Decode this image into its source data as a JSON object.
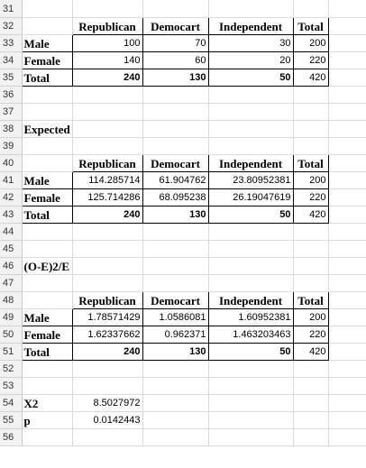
{
  "rows": [
    {
      "num": "31",
      "cells": []
    },
    {
      "num": "32",
      "cells": [
        {
          "col": 1,
          "text": "Republican",
          "kind": "header"
        },
        {
          "col": 2,
          "text": "Democart",
          "kind": "header"
        },
        {
          "col": 3,
          "text": "Independent",
          "kind": "header"
        },
        {
          "col": 4,
          "text": "Total",
          "kind": "header"
        }
      ]
    },
    {
      "num": "33",
      "cells": [
        {
          "col": 0,
          "text": "Male",
          "kind": "label"
        },
        {
          "col": 1,
          "text": "100",
          "kind": "num"
        },
        {
          "col": 2,
          "text": "70",
          "kind": "num"
        },
        {
          "col": 3,
          "text": "30",
          "kind": "num"
        },
        {
          "col": 4,
          "text": "200",
          "kind": "num"
        }
      ]
    },
    {
      "num": "34",
      "cells": [
        {
          "col": 0,
          "text": "Female",
          "kind": "label"
        },
        {
          "col": 1,
          "text": "140",
          "kind": "num"
        },
        {
          "col": 2,
          "text": "60",
          "kind": "num"
        },
        {
          "col": 3,
          "text": "20",
          "kind": "num"
        },
        {
          "col": 4,
          "text": "220",
          "kind": "num"
        }
      ]
    },
    {
      "num": "35",
      "cells": [
        {
          "col": 0,
          "text": "Total",
          "kind": "label"
        },
        {
          "col": 1,
          "text": "240",
          "kind": "numbold"
        },
        {
          "col": 2,
          "text": "130",
          "kind": "numbold"
        },
        {
          "col": 3,
          "text": "50",
          "kind": "numbold"
        },
        {
          "col": 4,
          "text": "420",
          "kind": "num"
        }
      ]
    },
    {
      "num": "36",
      "cells": []
    },
    {
      "num": "37",
      "cells": []
    },
    {
      "num": "38",
      "cells": [
        {
          "col": 0,
          "text": "Expected values",
          "kind": "title"
        }
      ]
    },
    {
      "num": "39",
      "cells": []
    },
    {
      "num": "40",
      "cells": [
        {
          "col": 1,
          "text": "Republican",
          "kind": "header"
        },
        {
          "col": 2,
          "text": "Democart",
          "kind": "header"
        },
        {
          "col": 3,
          "text": "Independent",
          "kind": "header"
        },
        {
          "col": 4,
          "text": "Total",
          "kind": "header"
        }
      ]
    },
    {
      "num": "41",
      "cells": [
        {
          "col": 0,
          "text": "Male",
          "kind": "label"
        },
        {
          "col": 1,
          "text": "114.285714",
          "kind": "num"
        },
        {
          "col": 2,
          "text": "61.904762",
          "kind": "num"
        },
        {
          "col": 3,
          "text": "23.80952381",
          "kind": "num"
        },
        {
          "col": 4,
          "text": "200",
          "kind": "num"
        }
      ]
    },
    {
      "num": "42",
      "cells": [
        {
          "col": 0,
          "text": "Female",
          "kind": "label"
        },
        {
          "col": 1,
          "text": "125.714286",
          "kind": "num"
        },
        {
          "col": 2,
          "text": "68.095238",
          "kind": "num"
        },
        {
          "col": 3,
          "text": "26.19047619",
          "kind": "num"
        },
        {
          "col": 4,
          "text": "220",
          "kind": "num"
        }
      ]
    },
    {
      "num": "43",
      "cells": [
        {
          "col": 0,
          "text": "Total",
          "kind": "label"
        },
        {
          "col": 1,
          "text": "240",
          "kind": "numbold"
        },
        {
          "col": 2,
          "text": "130",
          "kind": "numbold"
        },
        {
          "col": 3,
          "text": "50",
          "kind": "numbold"
        },
        {
          "col": 4,
          "text": "420",
          "kind": "num"
        }
      ]
    },
    {
      "num": "44",
      "cells": []
    },
    {
      "num": "45",
      "cells": []
    },
    {
      "num": "46",
      "cells": [
        {
          "col": 0,
          "text": "(O-E)2/E",
          "kind": "title"
        }
      ]
    },
    {
      "num": "47",
      "cells": []
    },
    {
      "num": "48",
      "cells": [
        {
          "col": 1,
          "text": "Republican",
          "kind": "header"
        },
        {
          "col": 2,
          "text": "Democart",
          "kind": "header"
        },
        {
          "col": 3,
          "text": "Independent",
          "kind": "header"
        },
        {
          "col": 4,
          "text": "Total",
          "kind": "header"
        }
      ]
    },
    {
      "num": "49",
      "cells": [
        {
          "col": 0,
          "text": "Male",
          "kind": "label"
        },
        {
          "col": 1,
          "text": "1.78571429",
          "kind": "num"
        },
        {
          "col": 2,
          "text": "1.0586081",
          "kind": "num"
        },
        {
          "col": 3,
          "text": "1.60952381",
          "kind": "num"
        },
        {
          "col": 4,
          "text": "200",
          "kind": "num"
        }
      ]
    },
    {
      "num": "50",
      "cells": [
        {
          "col": 0,
          "text": "Female",
          "kind": "label"
        },
        {
          "col": 1,
          "text": "1.62337662",
          "kind": "num"
        },
        {
          "col": 2,
          "text": "0.962371",
          "kind": "num"
        },
        {
          "col": 3,
          "text": "1.463203463",
          "kind": "num"
        },
        {
          "col": 4,
          "text": "220",
          "kind": "num"
        }
      ]
    },
    {
      "num": "51",
      "cells": [
        {
          "col": 0,
          "text": "Total",
          "kind": "label"
        },
        {
          "col": 1,
          "text": "240",
          "kind": "numbold"
        },
        {
          "col": 2,
          "text": "130",
          "kind": "numbold"
        },
        {
          "col": 3,
          "text": "50",
          "kind": "numbold"
        },
        {
          "col": 4,
          "text": "420",
          "kind": "num"
        }
      ]
    },
    {
      "num": "52",
      "cells": []
    },
    {
      "num": "53",
      "cells": []
    },
    {
      "num": "54",
      "cells": [
        {
          "col": 0,
          "text": "X2",
          "kind": "label"
        },
        {
          "col": 1,
          "text": "8.5027972",
          "kind": "num"
        }
      ]
    },
    {
      "num": "55",
      "cells": [
        {
          "col": 0,
          "text": "p",
          "kind": "label"
        },
        {
          "col": 1,
          "text": "0.0142443",
          "kind": "num"
        }
      ]
    },
    {
      "num": "56",
      "cells": []
    }
  ]
}
